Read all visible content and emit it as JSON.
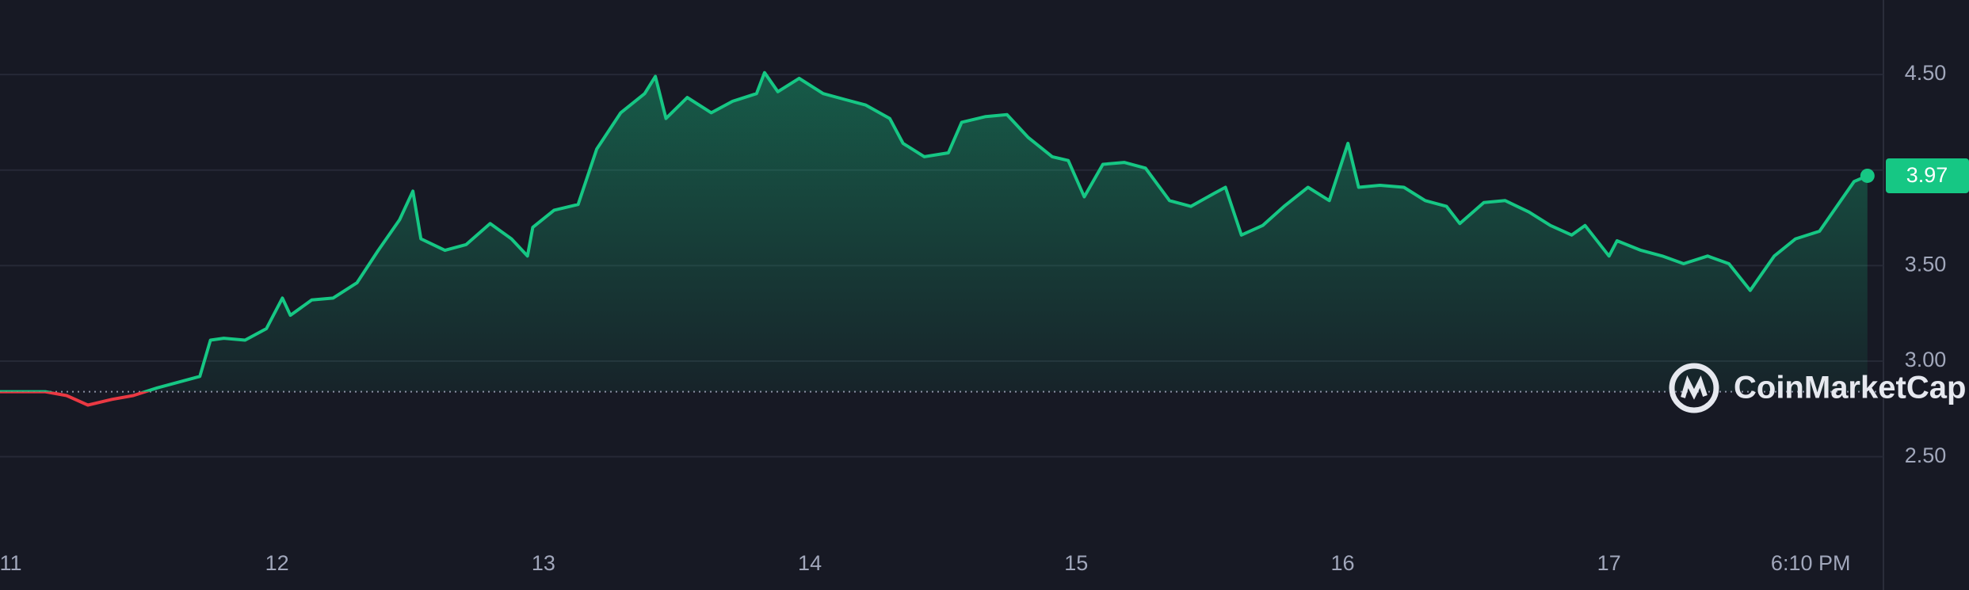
{
  "chart_data": {
    "type": "line",
    "x": [
      10.96,
      11.05,
      11.13,
      11.21,
      11.29,
      11.38,
      11.46,
      11.55,
      11.63,
      11.71,
      11.75,
      11.8,
      11.88,
      11.96,
      12.02,
      12.05,
      12.13,
      12.21,
      12.3,
      12.38,
      12.46,
      12.51,
      12.54,
      12.63,
      12.71,
      12.8,
      12.88,
      12.94,
      12.96,
      13.04,
      13.13,
      13.2,
      13.29,
      13.38,
      13.42,
      13.46,
      13.54,
      13.63,
      13.71,
      13.8,
      13.83,
      13.88,
      13.96,
      14.05,
      14.13,
      14.21,
      14.3,
      14.35,
      14.43,
      14.52,
      14.57,
      14.66,
      14.74,
      14.82,
      14.91,
      14.97,
      15.03,
      15.1,
      15.18,
      15.26,
      15.35,
      15.43,
      15.52,
      15.56,
      15.62,
      15.7,
      15.78,
      15.87,
      15.95,
      16.02,
      16.06,
      16.14,
      16.23,
      16.31,
      16.39,
      16.44,
      16.53,
      16.61,
      16.7,
      16.78,
      16.86,
      16.91,
      17.0,
      17.03,
      17.12,
      17.2,
      17.28,
      17.37,
      17.45,
      17.53,
      17.62,
      17.7,
      17.79,
      17.87,
      17.92,
      17.97
    ],
    "values": [
      2.84,
      2.84,
      2.84,
      2.82,
      2.77,
      2.8,
      2.82,
      2.86,
      2.89,
      2.92,
      3.11,
      3.12,
      3.11,
      3.17,
      3.33,
      3.24,
      3.32,
      3.33,
      3.41,
      3.58,
      3.74,
      3.89,
      3.64,
      3.58,
      3.61,
      3.72,
      3.64,
      3.55,
      3.7,
      3.79,
      3.82,
      4.11,
      4.3,
      4.4,
      4.49,
      4.27,
      4.38,
      4.3,
      4.36,
      4.4,
      4.51,
      4.41,
      4.48,
      4.4,
      4.37,
      4.34,
      4.27,
      4.14,
      4.07,
      4.09,
      4.25,
      4.28,
      4.29,
      4.17,
      4.07,
      4.05,
      3.86,
      4.03,
      4.04,
      4.01,
      3.84,
      3.81,
      3.88,
      3.91,
      3.66,
      3.71,
      3.81,
      3.91,
      3.84,
      4.14,
      3.91,
      3.92,
      3.91,
      3.84,
      3.81,
      3.72,
      3.83,
      3.84,
      3.78,
      3.71,
      3.66,
      3.71,
      3.55,
      3.63,
      3.58,
      3.55,
      3.51,
      3.55,
      3.51,
      3.37,
      3.55,
      3.64,
      3.68,
      3.84,
      3.94,
      3.97
    ],
    "color": "#16c784",
    "down_color": "#ea3943",
    "reference": 2.84,
    "xlim": [
      10.96,
      18.03
    ],
    "xticks": [
      11,
      12,
      13,
      14,
      15,
      16,
      17,
      {
        "value": 17.757,
        "label": "6:10 PM"
      }
    ],
    "ylim": [
      2.08,
      4.89
    ],
    "yticks": [
      {
        "value": 2.5,
        "label": "2.50"
      },
      {
        "value": 3.0,
        "label": "3.00"
      },
      {
        "value": 3.5,
        "label": "3.50"
      },
      {
        "value": 4.5,
        "label": "4.50"
      }
    ],
    "minor_grid": [
      4.0
    ],
    "grid": true,
    "watermark": "CoinMarketCap"
  }
}
